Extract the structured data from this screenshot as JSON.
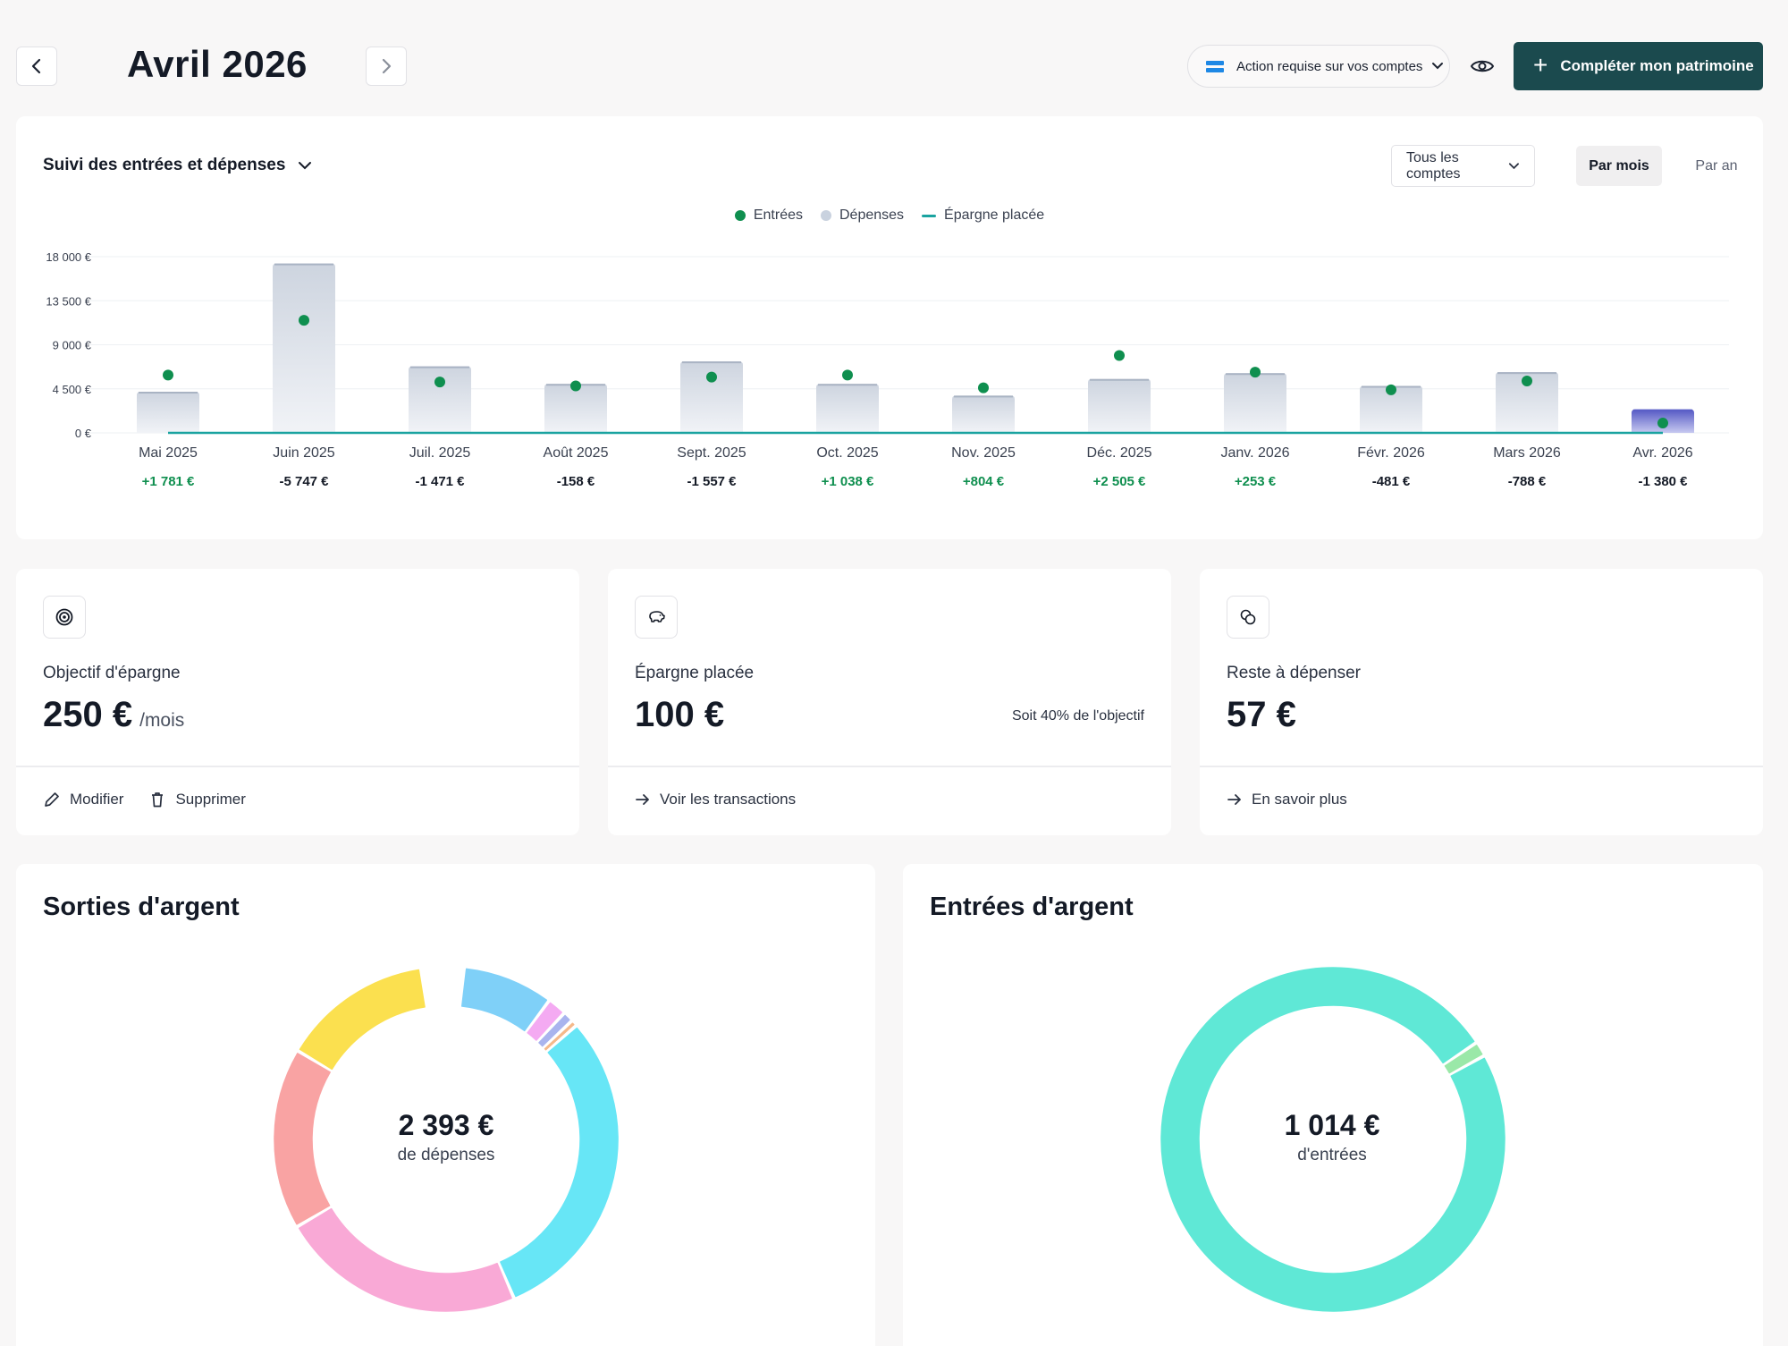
{
  "header": {
    "month_title": "Avril 2026",
    "action_label": "Action requise sur vos comptes",
    "cta_label": "Compléter mon patrimoine"
  },
  "tracker": {
    "title": "Suivi des entrées et dépenses",
    "account_filter": "Tous les comptes",
    "period_month": "Par mois",
    "period_year": "Par an",
    "legend": [
      {
        "label": "Entrées",
        "color": "#0f8f4f"
      },
      {
        "label": "Dépenses",
        "color": "#c9d2df"
      },
      {
        "label": "Épargne placée",
        "color": "#1aa3a0"
      }
    ]
  },
  "chart_data": {
    "type": "bar",
    "categories": [
      "Mai 2025",
      "Juin 2025",
      "Juil. 2025",
      "Août 2025",
      "Sept. 2025",
      "Oct. 2025",
      "Nov. 2025",
      "Déc. 2025",
      "Janv. 2026",
      "Févr. 2026",
      "Mars 2026",
      "Avr. 2026"
    ],
    "series": [
      {
        "name": "Dépenses",
        "type": "bar",
        "values": [
          4200,
          17300,
          6800,
          5000,
          7300,
          5000,
          3800,
          5500,
          6100,
          4800,
          6200,
          2400
        ]
      },
      {
        "name": "Entrées",
        "type": "scatter",
        "values": [
          5900,
          11500,
          5200,
          4800,
          5700,
          5900,
          4600,
          7900,
          6200,
          4400,
          5300,
          1000
        ]
      },
      {
        "name": "Épargne placée",
        "type": "line",
        "values": [
          0,
          0,
          0,
          0,
          0,
          0,
          0,
          0,
          0,
          0,
          0,
          100
        ]
      }
    ],
    "net_labels": [
      "+1 781 €",
      "-5 747 €",
      "-1 471 €",
      "-158 €",
      "-1 557 €",
      "+1 038 €",
      "+804 €",
      "+2 505 €",
      "+253 €",
      "-481 €",
      "-788 €",
      "-1 380 €"
    ],
    "net_positive": [
      true,
      false,
      false,
      false,
      false,
      true,
      true,
      true,
      true,
      false,
      false,
      false
    ],
    "y_ticks": [
      "0 €",
      "4 500 €",
      "9 000 €",
      "13 500 €",
      "18 000 €"
    ],
    "ylim": [
      0,
      18000
    ],
    "grid": true,
    "legend_position": "top-center",
    "highlight_index": 11,
    "colors": {
      "bar": "#d3d9e3",
      "bar_highlight": "#5b5fc7",
      "dot": "#0f8f4f",
      "line": "#1aa3a0",
      "positive": "#0f8f4f",
      "negative": "#141a26"
    }
  },
  "stats": {
    "goal": {
      "label": "Objectif d'épargne",
      "value": "250 €",
      "unit": "/mois",
      "edit": "Modifier",
      "delete": "Supprimer"
    },
    "saved": {
      "label": "Épargne placée",
      "value": "100 €",
      "note": "Soit 40% de l'objectif",
      "link": "Voir les transactions"
    },
    "remaining": {
      "label": "Reste à dépenser",
      "value": "57 €",
      "link": "En savoir plus"
    }
  },
  "outflows": {
    "title": "Sorties d'argent",
    "total": "2 393 €",
    "caption": "de dépenses",
    "segments": [
      {
        "color": "#7fd0f8",
        "share": 0.085
      },
      {
        "color": "#f4aaf2",
        "share": 0.018
      },
      {
        "color": "#a9b4ee",
        "share": 0.01
      },
      {
        "color": "#f5b98a",
        "share": 0.006
      },
      {
        "color": "#67e6f6",
        "share": 0.3
      },
      {
        "color": "#f9a9d6",
        "share": 0.23
      },
      {
        "color": "#f9a3a3",
        "share": 0.17
      },
      {
        "color": "#fbe04f",
        "share": 0.141
      }
    ]
  },
  "inflows": {
    "title": "Entrées d'argent",
    "total": "1 014 €",
    "caption": "d'entrées",
    "segments": [
      {
        "color": "#9ae8a8",
        "share": 0.014
      },
      {
        "color": "#5fe8d6",
        "share": 0.986
      }
    ]
  }
}
